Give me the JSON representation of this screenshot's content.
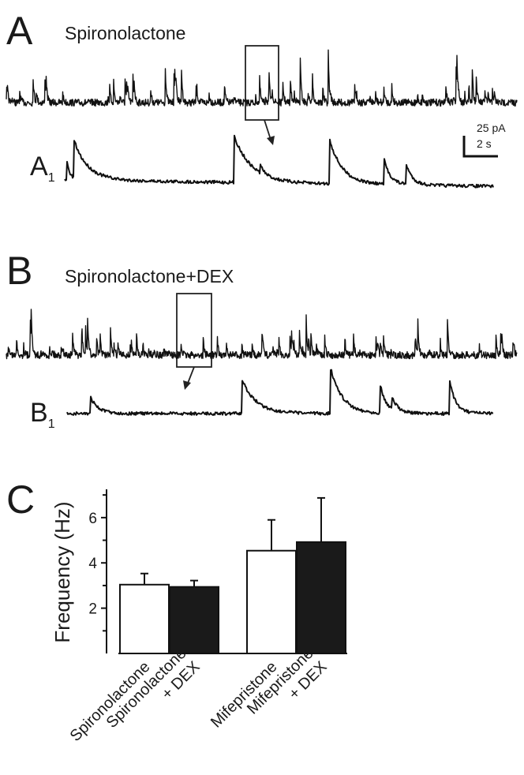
{
  "panels": [
    {
      "label": "A",
      "title": "Spironolactone",
      "inset_label": "A",
      "inset_subscript": "1"
    },
    {
      "label": "B",
      "title": "Spironolactone+DEX",
      "inset_label": "B",
      "inset_subscript": "1"
    }
  ],
  "scale_bar": {
    "current": "25 pA",
    "time": "2 s"
  },
  "chart_data": {
    "type": "bar",
    "panel_label": "C",
    "y_label": "Frequency (Hz)",
    "categories": [
      [
        "Spironolactone"
      ],
      [
        "Spironolactone",
        "+ DEX"
      ],
      [
        "Mifepristone"
      ],
      [
        "Mifepristone",
        "+ DEX"
      ]
    ],
    "values": [
      3.04,
      2.94,
      4.54,
      4.92
    ],
    "errors": [
      0.49,
      0.28,
      1.36,
      1.95
    ],
    "colors": [
      "#ffffff",
      "#1a1a1a",
      "#ffffff",
      "#1a1a1a"
    ],
    "ylim": [
      0,
      7.25
    ],
    "yticks": [
      2,
      4,
      6
    ],
    "minor_yticks": [
      1,
      3,
      5,
      7
    ]
  }
}
